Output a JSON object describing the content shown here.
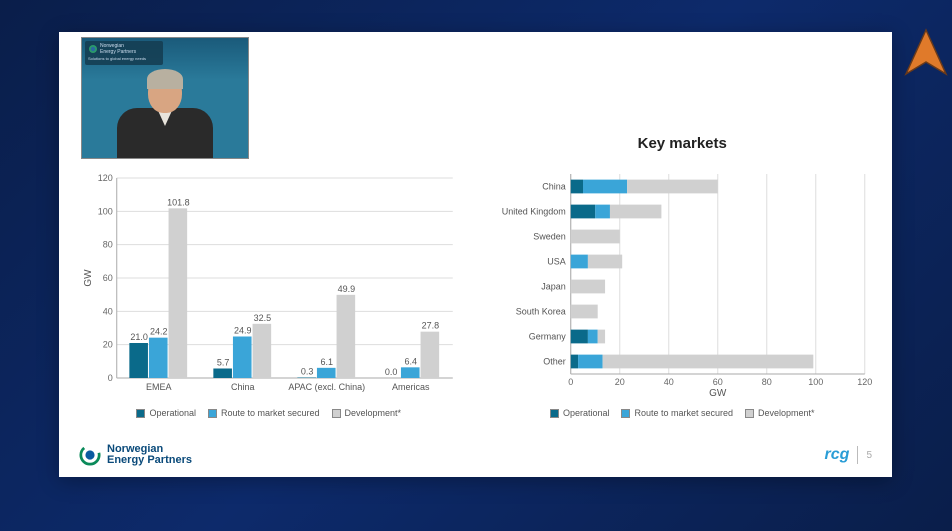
{
  "page_number": "5",
  "brand": {
    "nep_line1": "Norwegian",
    "nep_line2": "Energy Partners",
    "rcg": "rcg",
    "webcam_brand_line1": "Norwegian",
    "webcam_brand_line2": "Energy Partners",
    "webcam_tag": "Solutions to global energy needs"
  },
  "colors": {
    "operational": "#0a6a8a",
    "route": "#3aa5d8",
    "development": "#d0d0d0",
    "grid": "#dddddd",
    "axis": "#aaaaaa",
    "text": "#555555",
    "bg": "#ffffff",
    "arrow_fill": "#e07a2a",
    "arrow_stroke": "#6a3a1a",
    "nep_swirl_outer": "#0a8a5a",
    "nep_swirl_inner": "#0a5aa0"
  },
  "legend": {
    "operational": "Operational",
    "route": "Route to market secured",
    "development": "Development*"
  },
  "left_chart": {
    "type": "grouped-bar-vertical",
    "y_label": "GW",
    "y_min": 0,
    "y_max": 120,
    "y_step": 20,
    "categories": [
      "EMEA",
      "China",
      "APAC (excl. China)",
      "Americas"
    ],
    "series": [
      {
        "key": "operational",
        "values": [
          21.0,
          5.7,
          0.3,
          0.0
        ]
      },
      {
        "key": "route",
        "values": [
          24.2,
          24.9,
          6.1,
          6.4
        ]
      },
      {
        "key": "development",
        "values": [
          101.8,
          32.5,
          49.9,
          27.8
        ]
      }
    ],
    "bar_group_width": 0.7,
    "label_fontsize": 9
  },
  "right_chart": {
    "title": "Key markets",
    "type": "stacked-bar-horizontal",
    "x_label": "GW",
    "x_min": 0,
    "x_max": 120,
    "x_step": 20,
    "categories": [
      "China",
      "United Kingdom",
      "Sweden",
      "USA",
      "Japan",
      "South Korea",
      "Germany",
      "Other"
    ],
    "series": [
      {
        "key": "operational",
        "values": [
          5,
          10,
          0,
          0,
          0,
          0,
          7,
          3
        ]
      },
      {
        "key": "route",
        "values": [
          18,
          6,
          0,
          7,
          0,
          0,
          4,
          10
        ]
      },
      {
        "key": "development",
        "values": [
          37,
          21,
          20,
          14,
          14,
          11,
          3,
          86
        ]
      }
    ],
    "bar_height_ratio": 0.55
  }
}
